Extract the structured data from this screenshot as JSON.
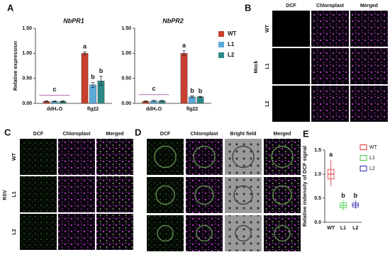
{
  "chart_data": [
    {
      "type": "bar",
      "panel": "A",
      "title": "NbPR1",
      "y_label": "Relative expression",
      "categories": [
        "ddH₂O",
        "flg22"
      ],
      "series": [
        {
          "name": "WT",
          "color": "#c8402e",
          "values": [
            0.04,
            1.0
          ],
          "errors": [
            0.01,
            0.03
          ],
          "letters": [
            null,
            "a"
          ]
        },
        {
          "name": "L1",
          "color": "#5aabdc",
          "values": [
            0.04,
            0.37
          ],
          "errors": [
            0.01,
            0.05
          ],
          "letters": [
            null,
            "b"
          ]
        },
        {
          "name": "L2",
          "color": "#2c8a86",
          "values": [
            0.04,
            0.45
          ],
          "errors": [
            0.01,
            0.09
          ],
          "letters": [
            null,
            "b"
          ]
        }
      ],
      "group_letters": [
        "c",
        null
      ],
      "ylim": [
        0,
        1.5
      ],
      "yticks": [
        {
          "value": 0,
          "label": "0.00"
        },
        {
          "value": 0.5,
          "label": "0.50"
        },
        {
          "value": 1.0,
          "label": "1.00"
        },
        {
          "value": 1.5,
          "label": "1.50"
        }
      ],
      "legend": "right"
    },
    {
      "type": "bar",
      "title": "NbPR2",
      "categories": [
        "ddH₂O",
        "flg22"
      ],
      "series": [
        {
          "name": "WT",
          "color": "#c8402e",
          "values": [
            0.04,
            1.0
          ],
          "errors": [
            0.01,
            0.05
          ],
          "letters": [
            null,
            "a"
          ]
        },
        {
          "name": "L1",
          "color": "#5aabdc",
          "values": [
            0.05,
            0.13
          ],
          "errors": [
            0.01,
            0.02
          ],
          "letters": [
            null,
            "b"
          ]
        },
        {
          "name": "L2",
          "color": "#2c8a86",
          "values": [
            0.05,
            0.13
          ],
          "errors": [
            0.01,
            0.01
          ],
          "letters": [
            null,
            "b"
          ]
        }
      ],
      "group_letters": [
        "c",
        null
      ],
      "ylim": [
        0,
        1.5
      ],
      "yticks": [
        {
          "value": 0,
          "label": "0.00"
        },
        {
          "value": 0.5,
          "label": "0.50"
        },
        {
          "value": 1.0,
          "label": "1.00"
        },
        {
          "value": 1.5,
          "label": "1.50"
        }
      ]
    },
    {
      "type": "box",
      "panel": "E",
      "y_label": "Relative indensity of DCF signal",
      "categories": [
        "WT",
        "L1",
        "L2"
      ],
      "colors": [
        "#e0303a",
        "#3cc83c",
        "#2a2aa8"
      ],
      "min": [
        0.75,
        0.25,
        0.28
      ],
      "q1": [
        0.9,
        0.3,
        0.32
      ],
      "median": [
        1.0,
        0.35,
        0.36
      ],
      "q3": [
        1.1,
        0.4,
        0.4
      ],
      "max": [
        1.3,
        0.45,
        0.45
      ],
      "letters": [
        "a",
        "b",
        "b"
      ],
      "ylim": [
        0,
        1.5
      ],
      "yticks": [
        {
          "value": 0,
          "label": "0.0"
        },
        {
          "value": 0.5,
          "label": "0.5"
        },
        {
          "value": 1.0,
          "label": "1.0"
        },
        {
          "value": 1.5,
          "label": "1.5"
        }
      ],
      "legend": "right"
    }
  ],
  "panels": [
    {
      "label": "B",
      "columns": [
        "DCF",
        "Chloroplast",
        "Merged"
      ],
      "rows": [
        "WT",
        "L1",
        "L2"
      ],
      "side_label": "Mock"
    },
    {
      "label": "C",
      "columns": [
        "DCF",
        "Chloroplast",
        "Merged"
      ],
      "rows": [
        "WT",
        "L1",
        "L2"
      ],
      "side_label": "RSV"
    },
    {
      "label": "D",
      "columns": [
        "DCF",
        "Chloroplast",
        "Bright field",
        "Merged"
      ]
    }
  ]
}
